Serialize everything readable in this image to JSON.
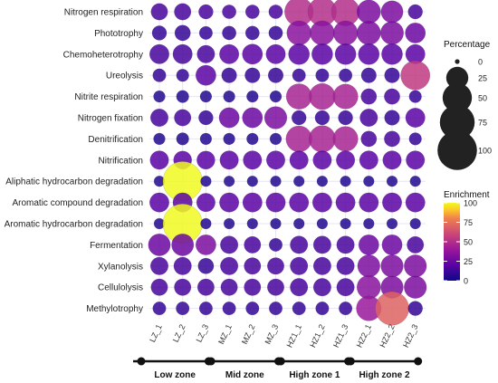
{
  "chart_data": {
    "type": "scatter",
    "subtype": "bubble-matrix",
    "rows": [
      "Nitrogen respiration",
      "Phototrophy",
      "Chemoheterotrophy",
      "Ureolysis",
      "Nitrite respiration",
      "Nitrogen fixation",
      "Denitrification",
      "Nitrification",
      "Aliphatic hydrocarbon degradation",
      "Aromatic compound degradation",
      "Aromatic hydrocarbon degradation",
      "Fermentation",
      "Xylanolysis",
      "Cellulolysis",
      "Methylotrophy"
    ],
    "columns": [
      "LZ_1",
      "LZ_2",
      "LZ_3",
      "MZ_1",
      "MZ_2",
      "MZ_3",
      "HZ1_1",
      "HZ1_2",
      "HZ1_3",
      "HZ2_1",
      "HZ2_2",
      "HZ2_3"
    ],
    "zones": [
      {
        "label": "Low zone",
        "columns": [
          "LZ_1",
          "LZ_2",
          "LZ_3"
        ]
      },
      {
        "label": "Mid zone",
        "columns": [
          "MZ_1",
          "MZ_2",
          "MZ_3"
        ]
      },
      {
        "label": "High zone 1",
        "columns": [
          "HZ1_1",
          "HZ1_2",
          "HZ1_3"
        ]
      },
      {
        "label": "High zone 2",
        "columns": [
          "HZ2_1",
          "HZ2_2",
          "HZ2_3"
        ]
      }
    ],
    "percentage": [
      [
        12,
        12,
        8,
        7,
        7,
        7,
        48,
        48,
        46,
        30,
        25,
        8
      ],
      [
        8,
        10,
        6,
        7,
        7,
        7,
        32,
        32,
        32,
        30,
        28,
        20
      ],
      [
        18,
        18,
        14,
        18,
        20,
        18,
        22,
        22,
        22,
        22,
        22,
        18
      ],
      [
        6,
        5,
        20,
        9,
        9,
        9,
        6,
        6,
        6,
        9,
        9,
        50
      ],
      [
        4,
        5,
        4,
        4,
        4,
        4,
        36,
        38,
        34,
        10,
        10,
        5
      ],
      [
        14,
        12,
        8,
        20,
        20,
        26,
        8,
        8,
        8,
        14,
        9,
        18
      ],
      [
        4,
        5,
        4,
        4,
        4,
        4,
        38,
        40,
        34,
        10,
        10,
        5
      ],
      [
        16,
        15,
        15,
        16,
        16,
        16,
        16,
        16,
        16,
        16,
        16,
        16
      ],
      [
        3,
        100,
        3,
        3,
        3,
        3,
        3,
        3,
        3,
        3,
        3,
        3
      ],
      [
        18,
        18,
        16,
        18,
        18,
        18,
        18,
        18,
        18,
        18,
        18,
        18
      ],
      [
        3,
        100,
        3,
        3,
        3,
        3,
        3,
        3,
        3,
        3,
        3,
        3
      ],
      [
        25,
        25,
        20,
        14,
        12,
        6,
        14,
        14,
        14,
        20,
        20,
        12
      ],
      [
        14,
        14,
        10,
        14,
        12,
        12,
        14,
        14,
        14,
        26,
        26,
        26
      ],
      [
        12,
        12,
        12,
        12,
        12,
        12,
        14,
        14,
        14,
        30,
        26,
        26
      ],
      [
        6,
        6,
        6,
        6,
        6,
        6,
        6,
        6,
        6,
        34,
        70,
        8
      ]
    ],
    "enrichment": [
      [
        15,
        15,
        15,
        15,
        15,
        15,
        50,
        50,
        50,
        30,
        30,
        15
      ],
      [
        10,
        10,
        10,
        10,
        10,
        10,
        35,
        35,
        35,
        30,
        30,
        25
      ],
      [
        15,
        15,
        15,
        20,
        20,
        20,
        20,
        20,
        20,
        20,
        20,
        20
      ],
      [
        10,
        10,
        20,
        10,
        10,
        10,
        10,
        10,
        10,
        10,
        10,
        55
      ],
      [
        5,
        5,
        5,
        5,
        5,
        5,
        45,
        45,
        45,
        15,
        15,
        10
      ],
      [
        15,
        15,
        10,
        25,
        25,
        30,
        10,
        10,
        10,
        15,
        10,
        20
      ],
      [
        5,
        5,
        5,
        5,
        5,
        5,
        45,
        45,
        45,
        15,
        15,
        10
      ],
      [
        20,
        20,
        20,
        20,
        20,
        20,
        20,
        20,
        20,
        20,
        20,
        20
      ],
      [
        5,
        100,
        5,
        5,
        5,
        5,
        5,
        5,
        5,
        5,
        5,
        5
      ],
      [
        20,
        20,
        20,
        20,
        20,
        20,
        20,
        20,
        20,
        20,
        20,
        20
      ],
      [
        5,
        100,
        5,
        5,
        5,
        5,
        5,
        5,
        5,
        5,
        5,
        5
      ],
      [
        25,
        25,
        30,
        15,
        15,
        10,
        15,
        15,
        15,
        25,
        25,
        15
      ],
      [
        15,
        15,
        10,
        15,
        15,
        15,
        15,
        15,
        15,
        30,
        30,
        30
      ],
      [
        15,
        15,
        15,
        15,
        15,
        15,
        15,
        15,
        15,
        35,
        30,
        30
      ],
      [
        10,
        10,
        10,
        10,
        10,
        10,
        10,
        10,
        10,
        40,
        70,
        10
      ]
    ],
    "size_legend": {
      "title": "Percentage",
      "values": [
        0,
        25,
        50,
        75,
        100
      ]
    },
    "color_legend": {
      "title": "Enrichment",
      "ticks": [
        100,
        75,
        50,
        25,
        0
      ],
      "range": [
        0,
        100
      ],
      "colormap": "plasma"
    },
    "grid": true
  }
}
